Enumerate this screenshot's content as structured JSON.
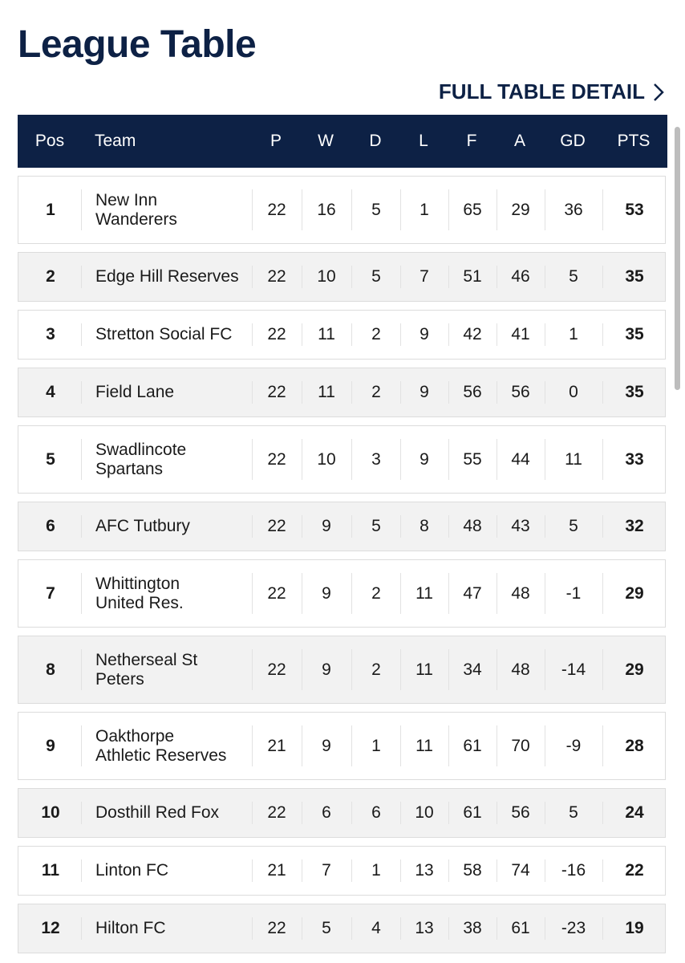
{
  "header": {
    "title": "League Table",
    "link": "FULL TABLE DETAIL"
  },
  "table": {
    "columns": [
      "Pos",
      "Team",
      "P",
      "W",
      "D",
      "L",
      "F",
      "A",
      "GD",
      "PTS"
    ],
    "rows": [
      [
        1,
        "New Inn\nWanderers",
        22,
        16,
        5,
        1,
        65,
        29,
        36,
        53
      ],
      [
        2,
        "Edge Hill Reserves",
        22,
        10,
        5,
        7,
        51,
        46,
        5,
        35
      ],
      [
        3,
        "Stretton Social FC",
        22,
        11,
        2,
        9,
        42,
        41,
        1,
        35
      ],
      [
        4,
        "Field Lane",
        22,
        11,
        2,
        9,
        56,
        56,
        0,
        35
      ],
      [
        5,
        "Swadlincote\nSpartans",
        22,
        10,
        3,
        9,
        55,
        44,
        11,
        33
      ],
      [
        6,
        "AFC Tutbury",
        22,
        9,
        5,
        8,
        48,
        43,
        5,
        32
      ],
      [
        7,
        "Whittington\nUnited Res.",
        22,
        9,
        2,
        11,
        47,
        48,
        -1,
        29
      ],
      [
        8,
        "Netherseal St\nPeters",
        22,
        9,
        2,
        11,
        34,
        48,
        -14,
        29
      ],
      [
        9,
        "Oakthorpe\nAthletic Reserves",
        21,
        9,
        1,
        11,
        61,
        70,
        -9,
        28
      ],
      [
        10,
        "Dosthill Red Fox",
        22,
        6,
        6,
        10,
        61,
        56,
        5,
        24
      ],
      [
        11,
        "Linton FC",
        21,
        7,
        1,
        13,
        58,
        74,
        -16,
        22
      ],
      [
        12,
        "Hilton FC",
        22,
        5,
        4,
        13,
        38,
        61,
        -23,
        19
      ]
    ]
  }
}
